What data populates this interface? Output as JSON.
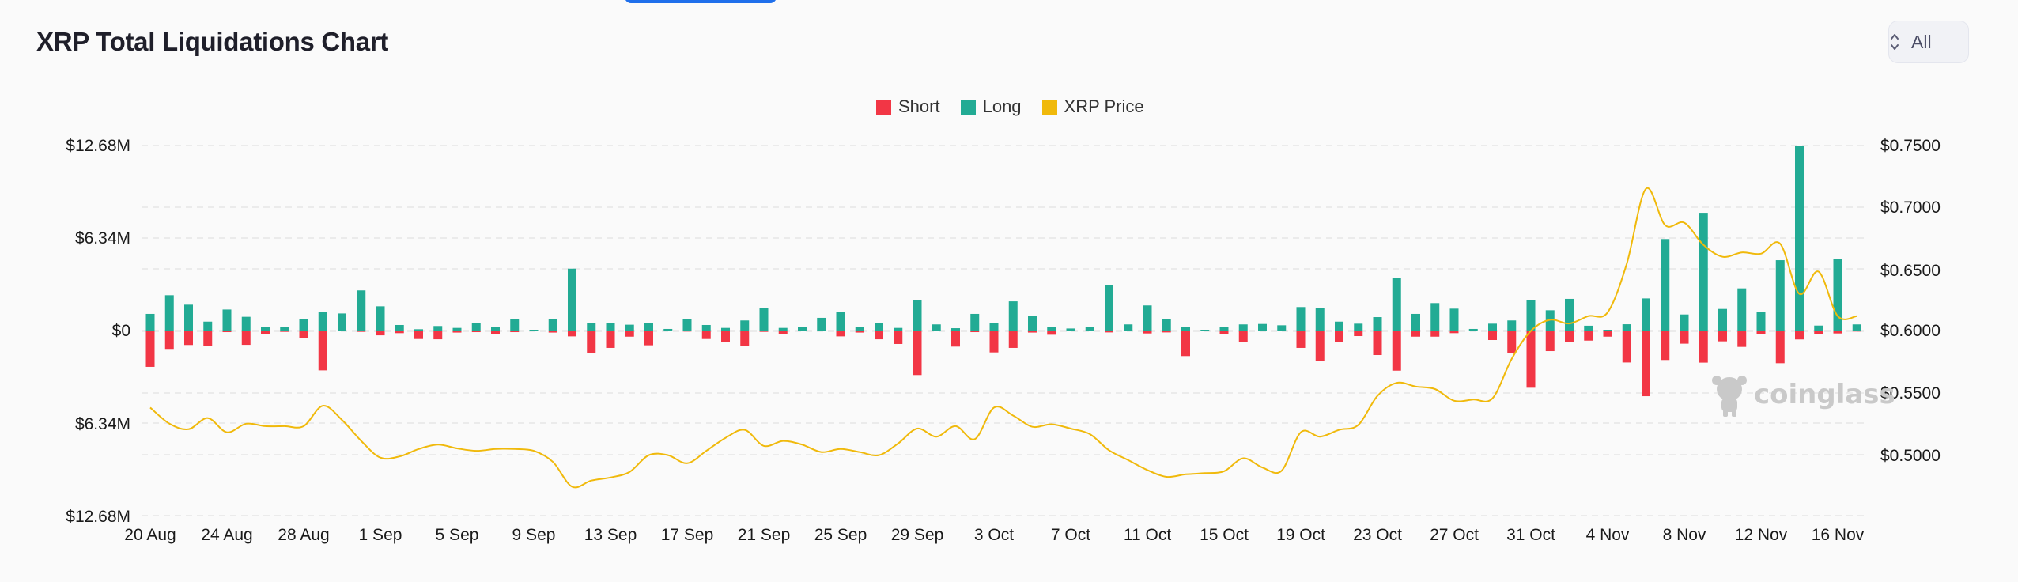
{
  "header": {
    "title": "XRP Total Liquidations Chart",
    "range_select": "All"
  },
  "colors": {
    "short": "#f23645",
    "long": "#22ab94",
    "price": "#f0b90b",
    "accent_tab": "#1f6feb"
  },
  "watermark": "coinglass",
  "chart_data": {
    "type": "bar",
    "title": "XRP Total Liquidations Chart",
    "legend": [
      "Short",
      "Long",
      "XRP Price"
    ],
    "legend_position": "top-center",
    "grid": true,
    "x_tick_labels": [
      "20 Aug",
      "24 Aug",
      "28 Aug",
      "1 Sep",
      "5 Sep",
      "9 Sep",
      "13 Sep",
      "17 Sep",
      "21 Sep",
      "25 Sep",
      "29 Sep",
      "3 Oct",
      "7 Oct",
      "11 Oct",
      "15 Oct",
      "19 Oct",
      "23 Oct",
      "27 Oct",
      "31 Oct",
      "4 Nov",
      "8 Nov",
      "12 Nov",
      "16 Nov"
    ],
    "y_left_tick_labels": [
      "$12.68M",
      "$6.34M",
      "$0",
      "$6.34M",
      "$12.68M"
    ],
    "y_left_range_musd": [
      -12.68,
      12.68
    ],
    "y_right_tick_labels": [
      "$0.7500",
      "$0.7000",
      "$0.6500",
      "$0.6000",
      "$0.5500",
      "$0.5000"
    ],
    "y_right_range": [
      0.45,
      0.75
    ],
    "x_range": [
      "20 Aug",
      "17 Nov"
    ],
    "units": {
      "liquidations": "USD millions",
      "price": "USD"
    },
    "series": [
      {
        "name": "Short",
        "axis": "left",
        "direction": "down",
        "values": [
          2.49,
          1.26,
          0.99,
          1.05,
          0.11,
          0.98,
          0.27,
          0.09,
          0.51,
          2.73,
          0.05,
          0.09,
          0.33,
          0.18,
          0.58,
          0.6,
          0.14,
          0.11,
          0.27,
          0.11,
          0.02,
          0.14,
          0.4,
          1.57,
          1.19,
          0.42,
          1.01,
          0.05,
          0.07,
          0.58,
          0.79,
          1.05,
          0.09,
          0.27,
          0.02,
          0.02,
          0.4,
          0.14,
          0.6,
          0.92,
          3.05,
          0.05,
          1.1,
          0.11,
          1.5,
          1.19,
          0.14,
          0.29,
          0,
          0.02,
          0.13,
          0.05,
          0.2,
          0.13,
          1.75,
          0,
          0.22,
          0.79,
          0.05,
          0.05,
          1.19,
          2.08,
          0.76,
          0.38,
          1.68,
          2.75,
          0.42,
          0.42,
          0.18,
          0.05,
          0.65,
          1.54,
          3.92,
          1.41,
          0.81,
          0.69,
          0.42,
          2.19,
          4.5,
          2.02,
          0.9,
          2.2,
          0.74,
          1.12,
          0.27,
          2.24,
          0.61,
          0.27,
          0.2,
          0.07
        ]
      },
      {
        "name": "Long",
        "axis": "left",
        "direction": "up",
        "values": [
          1.14,
          2.42,
          1.77,
          0.61,
          1.44,
          0.94,
          0.25,
          0.27,
          0.81,
          1.28,
          1.17,
          2.75,
          1.66,
          0.38,
          0.09,
          0.31,
          0.18,
          0.54,
          0.23,
          0.81,
          0.04,
          0.76,
          4.24,
          0.52,
          0.54,
          0.4,
          0.49,
          0.11,
          0.76,
          0.38,
          0.18,
          0.69,
          1.55,
          0.18,
          0.23,
          0.87,
          1.3,
          0.23,
          0.49,
          0.18,
          2.06,
          0.42,
          0.16,
          1.14,
          0.54,
          2.0,
          0.98,
          0.25,
          0.14,
          0.27,
          3.11,
          0.42,
          1.72,
          0.81,
          0.22,
          0.05,
          0.22,
          0.42,
          0.45,
          0.36,
          1.61,
          1.54,
          0.61,
          0.47,
          0.92,
          3.61,
          1.14,
          1.88,
          1.5,
          0.11,
          0.47,
          0.69,
          2.09,
          1.39,
          2.17,
          0.33,
          0.05,
          0.43,
          2.2,
          6.27,
          1.1,
          8.07,
          1.48,
          2.89,
          1.25,
          4.82,
          12.68,
          0.34,
          4.93,
          0.42
        ]
      },
      {
        "name": "XRP Price",
        "axis": "right",
        "type": "line",
        "values": [
          0.538,
          0.525,
          0.5205,
          0.5295,
          0.518,
          0.525,
          0.523,
          0.523,
          0.523,
          0.5395,
          0.528,
          0.511,
          0.4975,
          0.4985,
          0.5045,
          0.508,
          0.505,
          0.503,
          0.5045,
          0.5045,
          0.503,
          0.494,
          0.474,
          0.479,
          0.4815,
          0.486,
          0.4995,
          0.4995,
          0.493,
          0.503,
          0.5135,
          0.52,
          0.507,
          0.511,
          0.508,
          0.502,
          0.5045,
          0.502,
          0.4995,
          0.509,
          0.521,
          0.5145,
          0.523,
          0.5125,
          0.538,
          0.5315,
          0.5225,
          0.5245,
          0.521,
          0.5165,
          0.5035,
          0.4955,
          0.4875,
          0.482,
          0.484,
          0.485,
          0.4865,
          0.497,
          0.4895,
          0.487,
          0.518,
          0.5145,
          0.52,
          0.524,
          0.5475,
          0.558,
          0.555,
          0.553,
          0.5435,
          0.5445,
          0.5455,
          0.5775,
          0.6,
          0.609,
          0.606,
          0.612,
          0.615,
          0.6545,
          0.715,
          0.6855,
          0.6875,
          0.6695,
          0.66,
          0.6635,
          0.6625,
          0.6705,
          0.63,
          0.648,
          0.612,
          0.612
        ]
      }
    ]
  }
}
